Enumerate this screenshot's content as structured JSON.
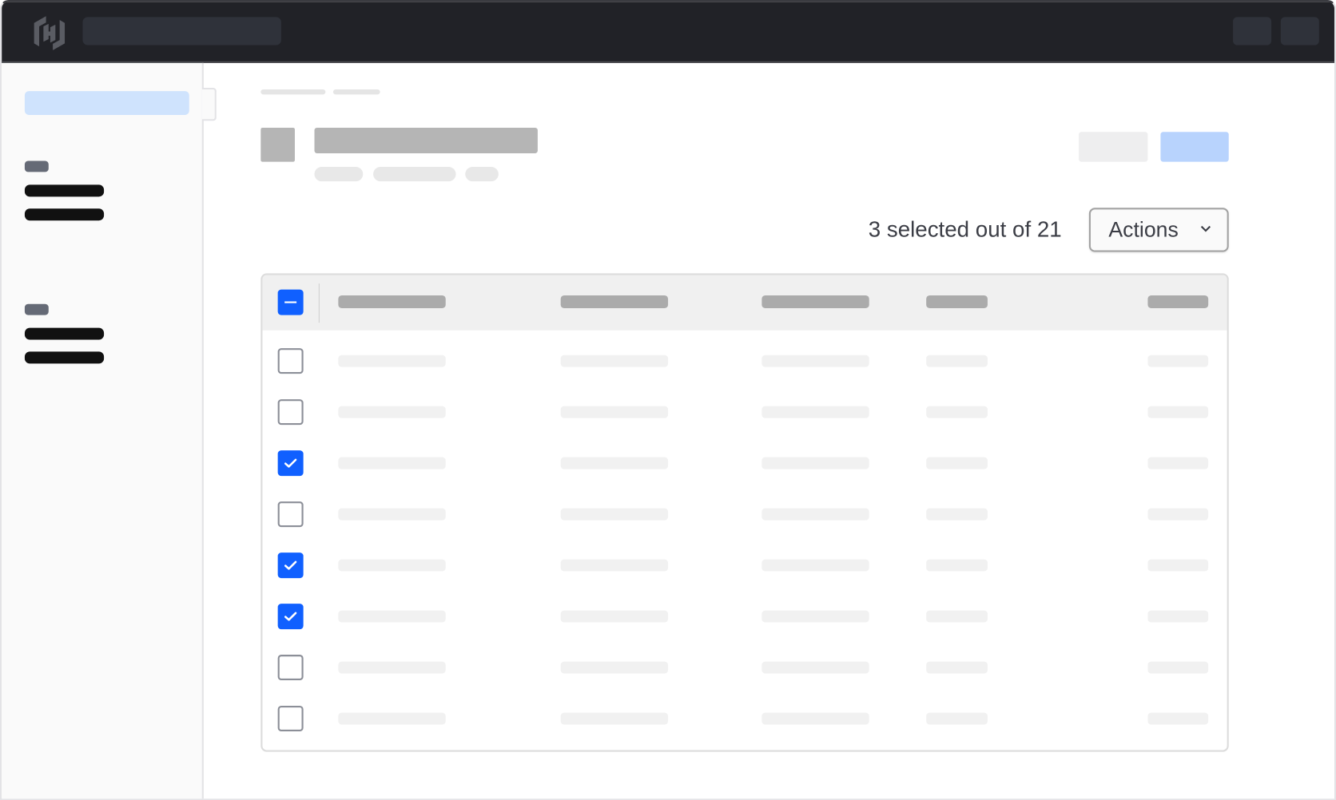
{
  "app": {
    "logo": "hashicorp-logo"
  },
  "selection": {
    "summary": "3 selected out of 21",
    "selected": 3,
    "total": 21
  },
  "actions": {
    "label": "Actions",
    "icon": "chevron-down-icon"
  },
  "table": {
    "header_checkbox_state": "indeterminate",
    "rows": [
      {
        "checked": false
      },
      {
        "checked": false
      },
      {
        "checked": true
      },
      {
        "checked": false
      },
      {
        "checked": true
      },
      {
        "checked": true
      },
      {
        "checked": false
      },
      {
        "checked": false
      }
    ]
  },
  "colors": {
    "accent": "#1060ff",
    "topbar": "#212227",
    "sidebar_active": "#cfe3fd",
    "primary_button": "#b8d3fd"
  }
}
